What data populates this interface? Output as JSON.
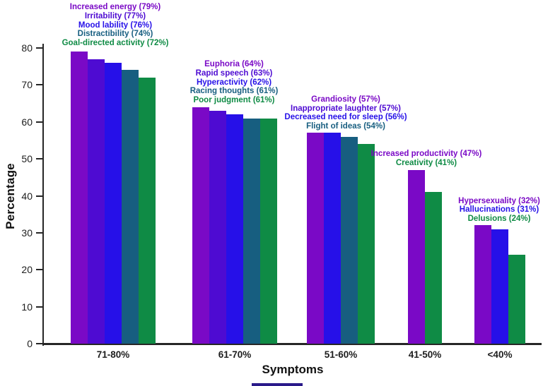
{
  "chart_data": {
    "type": "bar",
    "title": "",
    "xlabel": "Symptoms",
    "ylabel": "Percentage",
    "ylim": [
      0,
      80
    ],
    "yticks": [
      0,
      10,
      20,
      30,
      40,
      50,
      60,
      70,
      80
    ],
    "grid": false,
    "legend_position": "none",
    "colors": {
      "purple": "#7A09C6",
      "indigo": "#4E0BD2",
      "blue": "#2610E8",
      "teal": "#175E80",
      "green": "#0F8B45"
    },
    "groups": [
      {
        "category": "71-80%",
        "bars": [
          {
            "label": "Increased energy",
            "value": 79,
            "color": "purple",
            "annotation": "Increased energy (79%)",
            "annotation_color": "purple"
          },
          {
            "label": "Irritability",
            "value": 77,
            "color": "indigo",
            "annotation": "Irritability (77%)",
            "annotation_color": "indigo"
          },
          {
            "label": "Mood lability",
            "value": 76,
            "color": "blue",
            "annotation": "Mood lability (76%)",
            "annotation_color": "blue"
          },
          {
            "label": "Distractibility",
            "value": 74,
            "color": "teal",
            "annotation": "Distractibility (74%)",
            "annotation_color": "teal"
          },
          {
            "label": "Goal-directed activity",
            "value": 72,
            "color": "green",
            "annotation": "Goal-directed activity (72%)",
            "annotation_color": "green"
          }
        ]
      },
      {
        "category": "61-70%",
        "bars": [
          {
            "label": "Euphoria",
            "value": 64,
            "color": "purple",
            "annotation": "Euphoria (64%)",
            "annotation_color": "purple"
          },
          {
            "label": "Rapid speech",
            "value": 63,
            "color": "indigo",
            "annotation": "Rapid speech (63%)",
            "annotation_color": "indigo"
          },
          {
            "label": "Hyperactivity",
            "value": 62,
            "color": "blue",
            "annotation": "Hyperactivity (62%)",
            "annotation_color": "blue"
          },
          {
            "label": "Racing thoughts",
            "value": 61,
            "color": "teal",
            "annotation": "Racing thoughts (61%)",
            "annotation_color": "teal"
          },
          {
            "label": "Poor judgment",
            "value": 61,
            "color": "green",
            "annotation": "Poor judgment (61%)",
            "annotation_color": "green"
          }
        ]
      },
      {
        "category": "51-60%",
        "bars": [
          {
            "label": "Grandiosity",
            "value": 57,
            "color": "purple",
            "annotation": "Grandiosity (57%)",
            "annotation_color": "purple"
          },
          {
            "label": "Inappropriate laughter",
            "value": 57,
            "color": "blue",
            "annotation": "Inappropriate laughter (57%)",
            "annotation_color": "indigo"
          },
          {
            "label": "Decreased need for sleep",
            "value": 56,
            "color": "teal",
            "annotation": "Decreased need for sleep (56%)",
            "annotation_color": "blue"
          },
          {
            "label": "Flight of ideas",
            "value": 54,
            "color": "green",
            "annotation": "Flight of ideas (54%)",
            "annotation_color": "teal"
          }
        ]
      },
      {
        "category": "41-50%",
        "bars": [
          {
            "label": "Increased productivity",
            "value": 47,
            "color": "purple",
            "annotation": "Increased productivity (47%)",
            "annotation_color": "purple"
          },
          {
            "label": "Creativity",
            "value": 41,
            "color": "green",
            "annotation": "Creativity (41%)",
            "annotation_color": "green"
          }
        ]
      },
      {
        "category": "<40%",
        "bars": [
          {
            "label": "Hypersexuality",
            "value": 32,
            "color": "purple",
            "annotation": "Hypersexuality (32%)",
            "annotation_color": "purple"
          },
          {
            "label": "Hallucinations",
            "value": 31,
            "color": "blue",
            "annotation": "Hallucinations (31%)",
            "annotation_color": "blue"
          },
          {
            "label": "Delusions",
            "value": 24,
            "color": "green",
            "annotation": "Delusions (24%)",
            "annotation_color": "green"
          }
        ]
      }
    ]
  }
}
